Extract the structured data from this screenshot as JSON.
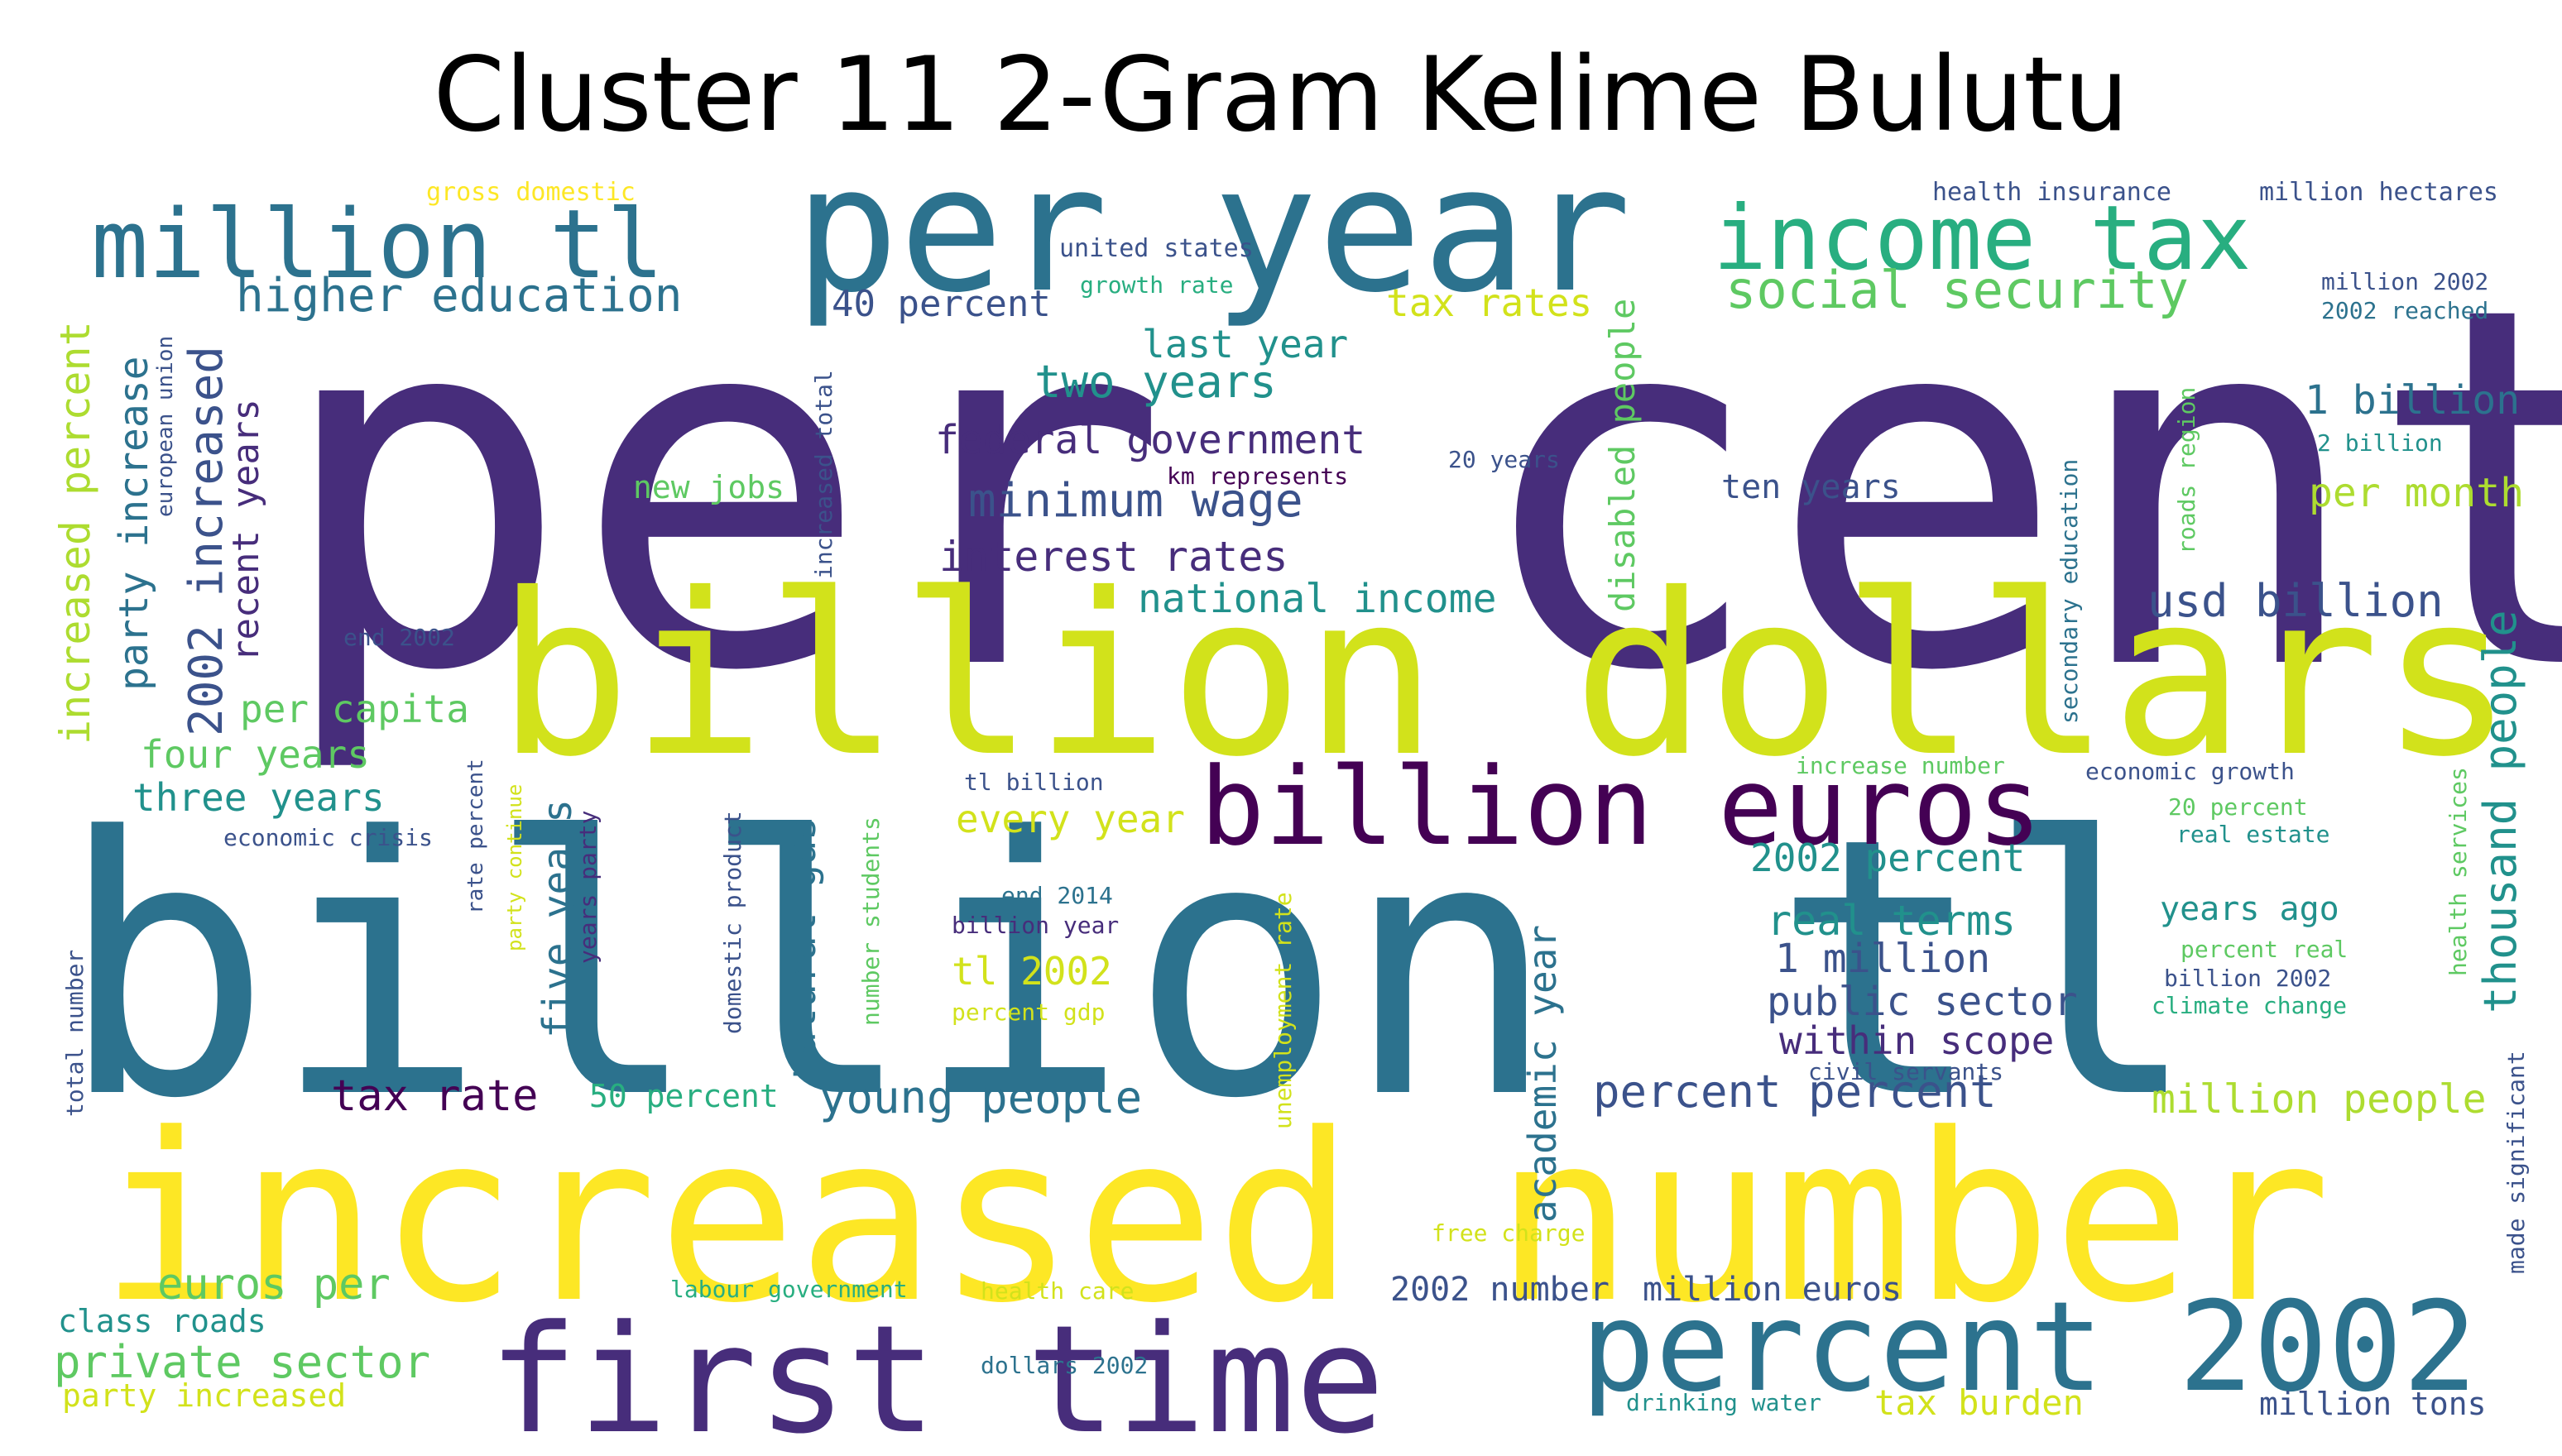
{
  "title": "Cluster 11 2-Gram Kelime Bulutu",
  "palette": [
    "#440154",
    "#472d7b",
    "#3b528b",
    "#2c728e",
    "#21918c",
    "#28ae80",
    "#5ec962",
    "#addc30",
    "#d2e21b",
    "#fde725"
  ],
  "words": [
    {
      "text": "per cent",
      "weight": 1.0,
      "color": "#472d7b",
      "vertical": false
    },
    {
      "text": "billion tl",
      "weight": 0.98,
      "color": "#2c728e",
      "vertical": false
    },
    {
      "text": "billion dollars",
      "weight": 0.58,
      "color": "#d2e21b",
      "vertical": false
    },
    {
      "text": "increased number",
      "weight": 0.6,
      "color": "#fde725",
      "vertical": false
    },
    {
      "text": "per year",
      "weight": 0.5,
      "color": "#2c728e",
      "vertical": false
    },
    {
      "text": "first time",
      "weight": 0.42,
      "color": "#472d7b",
      "vertical": false
    },
    {
      "text": "percent 2002",
      "weight": 0.36,
      "color": "#2c728e",
      "vertical": false
    },
    {
      "text": "billion euros",
      "weight": 0.31,
      "color": "#440154",
      "vertical": false
    },
    {
      "text": "million tl",
      "weight": 0.25,
      "color": "#2c728e",
      "vertical": false
    },
    {
      "text": "income tax",
      "weight": 0.24,
      "color": "#28ae80",
      "vertical": false
    },
    {
      "text": "higher education",
      "weight": 0.11,
      "color": "#2c728e",
      "vertical": false
    },
    {
      "text": "social security",
      "weight": 0.11,
      "color": "#5ec962",
      "vertical": false
    },
    {
      "text": "2002 increased",
      "weight": 0.11,
      "color": "#3b528b",
      "vertical": true
    },
    {
      "text": "recent years",
      "weight": 0.09,
      "color": "#472d7b",
      "vertical": true
    },
    {
      "text": "party increase",
      "weight": 0.09,
      "color": "#2c728e",
      "vertical": true
    },
    {
      "text": "increased percent",
      "weight": 0.09,
      "color": "#addc30",
      "vertical": true
    },
    {
      "text": "40 percent",
      "weight": 0.08,
      "color": "#3b528b",
      "vertical": false
    },
    {
      "text": "tax rates",
      "weight": 0.09,
      "color": "#d2e21b",
      "vertical": false
    },
    {
      "text": "last year",
      "weight": 0.09,
      "color": "#21918c",
      "vertical": false
    },
    {
      "text": "two years",
      "weight": 0.1,
      "color": "#21918c",
      "vertical": false
    },
    {
      "text": "federal government",
      "weight": 0.09,
      "color": "#472d7b",
      "vertical": false
    },
    {
      "text": "minimum wage",
      "weight": 0.11,
      "color": "#3b528b",
      "vertical": false
    },
    {
      "text": "interest rates",
      "weight": 0.09,
      "color": "#472d7b",
      "vertical": false
    },
    {
      "text": "national income",
      "weight": 0.09,
      "color": "#21918c",
      "vertical": false
    },
    {
      "text": "new jobs",
      "weight": 0.07,
      "color": "#5ec962",
      "vertical": false
    },
    {
      "text": "ten years",
      "weight": 0.08,
      "color": "#3b528b",
      "vertical": false
    },
    {
      "text": "1 billion",
      "weight": 0.09,
      "color": "#2c728e",
      "vertical": false
    },
    {
      "text": "per month",
      "weight": 0.09,
      "color": "#addc30",
      "vertical": false
    },
    {
      "text": "usd billion",
      "weight": 0.1,
      "color": "#3b528b",
      "vertical": false
    },
    {
      "text": "thousand people",
      "weight": 0.1,
      "color": "#21918c",
      "vertical": true
    },
    {
      "text": "disabled people",
      "weight": 0.08,
      "color": "#5ec962",
      "vertical": true
    },
    {
      "text": "per capita",
      "weight": 0.08,
      "color": "#5ec962",
      "vertical": false
    },
    {
      "text": "four years",
      "weight": 0.08,
      "color": "#5ec962",
      "vertical": false
    },
    {
      "text": "three years",
      "weight": 0.08,
      "color": "#21918c",
      "vertical": false
    },
    {
      "text": "every year",
      "weight": 0.09,
      "color": "#d2e21b",
      "vertical": false
    },
    {
      "text": "2002 percent",
      "weight": 0.09,
      "color": "#21918c",
      "vertical": false
    },
    {
      "text": "real terms",
      "weight": 0.09,
      "color": "#21918c",
      "vertical": false
    },
    {
      "text": "1 million",
      "weight": 0.09,
      "color": "#3b528b",
      "vertical": false
    },
    {
      "text": "years ago",
      "weight": 0.08,
      "color": "#21918c",
      "vertical": false
    },
    {
      "text": "public sector",
      "weight": 0.09,
      "color": "#3b528b",
      "vertical": false
    },
    {
      "text": "within scope",
      "weight": 0.09,
      "color": "#472d7b",
      "vertical": false
    },
    {
      "text": "tl 2002",
      "weight": 0.09,
      "color": "#d2e21b",
      "vertical": false
    },
    {
      "text": "five years",
      "weight": 0.09,
      "color": "#2c728e",
      "vertical": true
    },
    {
      "text": "natural gas",
      "weight": 0.09,
      "color": "#2c728e",
      "vertical": true
    },
    {
      "text": "academic year",
      "weight": 0.09,
      "color": "#2c728e",
      "vertical": true
    },
    {
      "text": "tax rate",
      "weight": 0.09,
      "color": "#440154",
      "vertical": false
    },
    {
      "text": "50 percent",
      "weight": 0.07,
      "color": "#28ae80",
      "vertical": false
    },
    {
      "text": "young people",
      "weight": 0.1,
      "color": "#2c728e",
      "vertical": false
    },
    {
      "text": "percent percent",
      "weight": 0.1,
      "color": "#3b528b",
      "vertical": false
    },
    {
      "text": "million people",
      "weight": 0.09,
      "color": "#addc30",
      "vertical": false
    },
    {
      "text": "euros per",
      "weight": 0.09,
      "color": "#5ec962",
      "vertical": false
    },
    {
      "text": "class roads",
      "weight": 0.07,
      "color": "#21918c",
      "vertical": false
    },
    {
      "text": "private sector",
      "weight": 0.1,
      "color": "#5ec962",
      "vertical": false
    },
    {
      "text": "party increased",
      "weight": 0.07,
      "color": "#d2e21b",
      "vertical": false
    },
    {
      "text": "2002 number",
      "weight": 0.07,
      "color": "#3b528b",
      "vertical": false
    },
    {
      "text": "million euros",
      "weight": 0.07,
      "color": "#3b528b",
      "vertical": false
    },
    {
      "text": "tax burden",
      "weight": 0.08,
      "color": "#d2e21b",
      "vertical": false
    },
    {
      "text": "million tons",
      "weight": 0.07,
      "color": "#3b528b",
      "vertical": false
    },
    {
      "text": "gross domestic",
      "weight": 0.05,
      "color": "#fde725",
      "vertical": false
    },
    {
      "text": "united states",
      "weight": 0.05,
      "color": "#3b528b",
      "vertical": false
    },
    {
      "text": "growth rate",
      "weight": 0.05,
      "color": "#28ae80",
      "vertical": false
    },
    {
      "text": "health insurance",
      "weight": 0.05,
      "color": "#3b528b",
      "vertical": false
    },
    {
      "text": "million hectares",
      "weight": 0.05,
      "color": "#3b528b",
      "vertical": false
    },
    {
      "text": "million 2002",
      "weight": 0.05,
      "color": "#3b528b",
      "vertical": false
    },
    {
      "text": "2002 reached",
      "weight": 0.05,
      "color": "#2c728e",
      "vertical": false
    },
    {
      "text": "2 billion",
      "weight": 0.05,
      "color": "#21918c",
      "vertical": false
    },
    {
      "text": "20 years",
      "weight": 0.05,
      "color": "#3b528b",
      "vertical": false
    },
    {
      "text": "km represents",
      "weight": 0.05,
      "color": "#440154",
      "vertical": false
    },
    {
      "text": "end 2002",
      "weight": 0.05,
      "color": "#3b528b",
      "vertical": false
    },
    {
      "text": "european union",
      "weight": 0.05,
      "color": "#3b528b",
      "vertical": true
    },
    {
      "text": "increased total",
      "weight": 0.05,
      "color": "#3b528b",
      "vertical": true
    },
    {
      "text": "secondary education",
      "weight": 0.05,
      "color": "#2c728e",
      "vertical": true
    },
    {
      "text": "roads region",
      "weight": 0.05,
      "color": "#5ec962",
      "vertical": true
    },
    {
      "text": "increase number",
      "weight": 0.05,
      "color": "#5ec962",
      "vertical": false
    },
    {
      "text": "economic growth",
      "weight": 0.05,
      "color": "#3b528b",
      "vertical": false
    },
    {
      "text": "20 percent",
      "weight": 0.05,
      "color": "#5ec962",
      "vertical": false
    },
    {
      "text": "real estate",
      "weight": 0.05,
      "color": "#21918c",
      "vertical": false
    },
    {
      "text": "percent real",
      "weight": 0.05,
      "color": "#5ec962",
      "vertical": false
    },
    {
      "text": "billion 2002",
      "weight": 0.05,
      "color": "#3b528b",
      "vertical": false
    },
    {
      "text": "climate change",
      "weight": 0.05,
      "color": "#28ae80",
      "vertical": false
    },
    {
      "text": "health services",
      "weight": 0.05,
      "color": "#5ec962",
      "vertical": true
    },
    {
      "text": "made significant",
      "weight": 0.05,
      "color": "#3b528b",
      "vertical": true
    },
    {
      "text": "economic crisis",
      "weight": 0.05,
      "color": "#3b528b",
      "vertical": false
    },
    {
      "text": "tl billion",
      "weight": 0.05,
      "color": "#3b528b",
      "vertical": false
    },
    {
      "text": "end 2014",
      "weight": 0.05,
      "color": "#2c728e",
      "vertical": false
    },
    {
      "text": "billion year",
      "weight": 0.05,
      "color": "#472d7b",
      "vertical": false
    },
    {
      "text": "percent gdp",
      "weight": 0.05,
      "color": "#d2e21b",
      "vertical": false
    },
    {
      "text": "rate percent",
      "weight": 0.05,
      "color": "#3b528b",
      "vertical": true
    },
    {
      "text": "party continue",
      "weight": 0.05,
      "color": "#d2e21b",
      "vertical": true
    },
    {
      "text": "years party",
      "weight": 0.05,
      "color": "#472d7b",
      "vertical": true
    },
    {
      "text": "domestic product",
      "weight": 0.05,
      "color": "#3b528b",
      "vertical": true
    },
    {
      "text": "number students",
      "weight": 0.05,
      "color": "#5ec962",
      "vertical": true
    },
    {
      "text": "unemployment rate",
      "weight": 0.05,
      "color": "#d2e21b",
      "vertical": true
    },
    {
      "text": "total number",
      "weight": 0.05,
      "color": "#3b528b",
      "vertical": true
    },
    {
      "text": "civil servants",
      "weight": 0.05,
      "color": "#3b528b",
      "vertical": false
    },
    {
      "text": "free charge",
      "weight": 0.05,
      "color": "#d2e21b",
      "vertical": false
    },
    {
      "text": "labour government",
      "weight": 0.05,
      "color": "#28ae80",
      "vertical": false
    },
    {
      "text": "health care",
      "weight": 0.05,
      "color": "#d2e21b",
      "vertical": false
    },
    {
      "text": "dollars 2002",
      "weight": 0.05,
      "color": "#2c728e",
      "vertical": false
    },
    {
      "text": "drinking water",
      "weight": 0.05,
      "color": "#21918c",
      "vertical": false
    }
  ]
}
